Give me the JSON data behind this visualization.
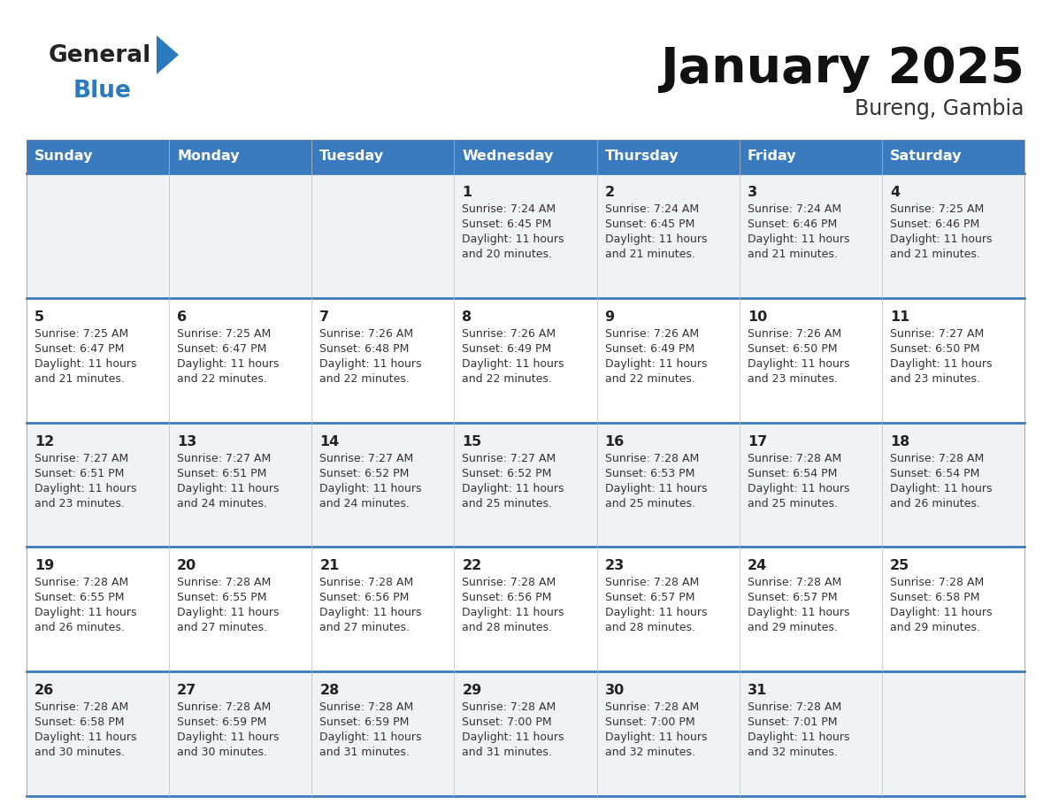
{
  "title": "January 2025",
  "subtitle": "Bureng, Gambia",
  "days_of_week": [
    "Sunday",
    "Monday",
    "Tuesday",
    "Wednesday",
    "Thursday",
    "Friday",
    "Saturday"
  ],
  "header_bg": "#3a7abf",
  "header_text": "#ffffff",
  "row_bg_odd": "#eff3f8",
  "row_bg_even": "#ffffff",
  "separator_color": "#3a7abf",
  "text_color": "#222222",
  "cell_text_color": "#333333",
  "logo_general_color": "#222222",
  "logo_blue_color": "#2a7abf",
  "logo_triangle_color": "#2a7abf",
  "calendar_data": [
    [
      null,
      null,
      null,
      {
        "day": 1,
        "sunrise": "7:24 AM",
        "sunset": "6:45 PM",
        "daylight": "11 hours and 20 minutes."
      },
      {
        "day": 2,
        "sunrise": "7:24 AM",
        "sunset": "6:45 PM",
        "daylight": "11 hours and 21 minutes."
      },
      {
        "day": 3,
        "sunrise": "7:24 AM",
        "sunset": "6:46 PM",
        "daylight": "11 hours and 21 minutes."
      },
      {
        "day": 4,
        "sunrise": "7:25 AM",
        "sunset": "6:46 PM",
        "daylight": "11 hours and 21 minutes."
      }
    ],
    [
      {
        "day": 5,
        "sunrise": "7:25 AM",
        "sunset": "6:47 PM",
        "daylight": "11 hours and 21 minutes."
      },
      {
        "day": 6,
        "sunrise": "7:25 AM",
        "sunset": "6:47 PM",
        "daylight": "11 hours and 22 minutes."
      },
      {
        "day": 7,
        "sunrise": "7:26 AM",
        "sunset": "6:48 PM",
        "daylight": "11 hours and 22 minutes."
      },
      {
        "day": 8,
        "sunrise": "7:26 AM",
        "sunset": "6:49 PM",
        "daylight": "11 hours and 22 minutes."
      },
      {
        "day": 9,
        "sunrise": "7:26 AM",
        "sunset": "6:49 PM",
        "daylight": "11 hours and 22 minutes."
      },
      {
        "day": 10,
        "sunrise": "7:26 AM",
        "sunset": "6:50 PM",
        "daylight": "11 hours and 23 minutes."
      },
      {
        "day": 11,
        "sunrise": "7:27 AM",
        "sunset": "6:50 PM",
        "daylight": "11 hours and 23 minutes."
      }
    ],
    [
      {
        "day": 12,
        "sunrise": "7:27 AM",
        "sunset": "6:51 PM",
        "daylight": "11 hours and 23 minutes."
      },
      {
        "day": 13,
        "sunrise": "7:27 AM",
        "sunset": "6:51 PM",
        "daylight": "11 hours and 24 minutes."
      },
      {
        "day": 14,
        "sunrise": "7:27 AM",
        "sunset": "6:52 PM",
        "daylight": "11 hours and 24 minutes."
      },
      {
        "day": 15,
        "sunrise": "7:27 AM",
        "sunset": "6:52 PM",
        "daylight": "11 hours and 25 minutes."
      },
      {
        "day": 16,
        "sunrise": "7:28 AM",
        "sunset": "6:53 PM",
        "daylight": "11 hours and 25 minutes."
      },
      {
        "day": 17,
        "sunrise": "7:28 AM",
        "sunset": "6:54 PM",
        "daylight": "11 hours and 25 minutes."
      },
      {
        "day": 18,
        "sunrise": "7:28 AM",
        "sunset": "6:54 PM",
        "daylight": "11 hours and 26 minutes."
      }
    ],
    [
      {
        "day": 19,
        "sunrise": "7:28 AM",
        "sunset": "6:55 PM",
        "daylight": "11 hours and 26 minutes."
      },
      {
        "day": 20,
        "sunrise": "7:28 AM",
        "sunset": "6:55 PM",
        "daylight": "11 hours and 27 minutes."
      },
      {
        "day": 21,
        "sunrise": "7:28 AM",
        "sunset": "6:56 PM",
        "daylight": "11 hours and 27 minutes."
      },
      {
        "day": 22,
        "sunrise": "7:28 AM",
        "sunset": "6:56 PM",
        "daylight": "11 hours and 28 minutes."
      },
      {
        "day": 23,
        "sunrise": "7:28 AM",
        "sunset": "6:57 PM",
        "daylight": "11 hours and 28 minutes."
      },
      {
        "day": 24,
        "sunrise": "7:28 AM",
        "sunset": "6:57 PM",
        "daylight": "11 hours and 29 minutes."
      },
      {
        "day": 25,
        "sunrise": "7:28 AM",
        "sunset": "6:58 PM",
        "daylight": "11 hours and 29 minutes."
      }
    ],
    [
      {
        "day": 26,
        "sunrise": "7:28 AM",
        "sunset": "6:58 PM",
        "daylight": "11 hours and 30 minutes."
      },
      {
        "day": 27,
        "sunrise": "7:28 AM",
        "sunset": "6:59 PM",
        "daylight": "11 hours and 30 minutes."
      },
      {
        "day": 28,
        "sunrise": "7:28 AM",
        "sunset": "6:59 PM",
        "daylight": "11 hours and 31 minutes."
      },
      {
        "day": 29,
        "sunrise": "7:28 AM",
        "sunset": "7:00 PM",
        "daylight": "11 hours and 31 minutes."
      },
      {
        "day": 30,
        "sunrise": "7:28 AM",
        "sunset": "7:00 PM",
        "daylight": "11 hours and 32 minutes."
      },
      {
        "day": 31,
        "sunrise": "7:28 AM",
        "sunset": "7:01 PM",
        "daylight": "11 hours and 32 minutes."
      },
      null
    ]
  ]
}
